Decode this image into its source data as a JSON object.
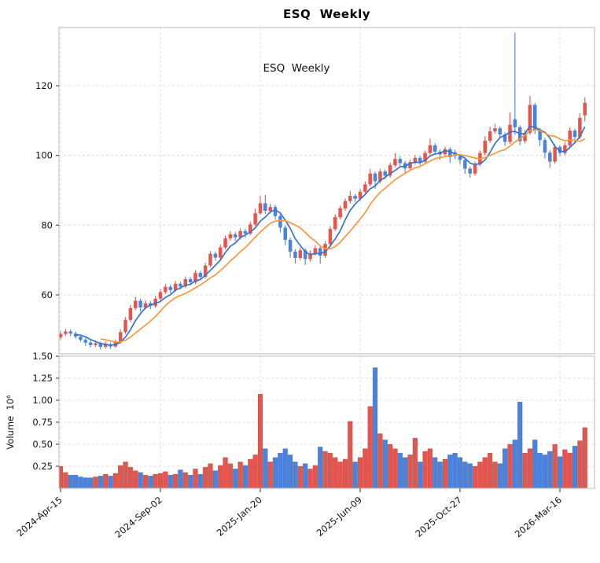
{
  "chart_data": {
    "type": "candlestick",
    "title": "ESQ  Weekly",
    "inner_label": "ESQ  Weekly",
    "grid": true,
    "legend_position": "none",
    "panels": [
      "price",
      "volume"
    ],
    "x_axis": {
      "tick_labels": [
        "2024-Apr-15",
        "2024-Sep-02",
        "2025-Jan-20",
        "2025-Jun-09",
        "2025-Oct-27",
        "2026-Mar-16"
      ],
      "tick_indices": [
        1,
        21,
        41,
        61,
        81,
        101
      ],
      "label_rotation_deg": -40
    },
    "price_axis": {
      "ticks": [
        60,
        80,
        100,
        120
      ],
      "range": [
        43,
        137
      ]
    },
    "volume_axis": {
      "label": "Volume  10⁶",
      "ticks": [
        0.25,
        0.5,
        0.75,
        1.0,
        1.25,
        1.5
      ],
      "range": [
        0,
        1.5
      ],
      "unit_multiplier": 1000000
    },
    "colors": {
      "up": "#e3554d",
      "down": "#4a82dd",
      "ma_short": "#3a72c6",
      "ma_long": "#f8973f",
      "grid": "#dcdcdc",
      "spine": "#c0c0c0"
    },
    "moving_averages": [
      {
        "window": 5,
        "color_key": "ma_short"
      },
      {
        "window": 10,
        "color_key": "ma_long"
      }
    ],
    "series_format": [
      "open",
      "high",
      "low",
      "close",
      "volume_millions"
    ],
    "candles": [
      [
        47.2,
        48.5,
        45.9,
        47.8,
        0.29
      ],
      [
        47.8,
        49.6,
        47.2,
        48.8,
        0.25
      ],
      [
        48.8,
        50.3,
        48.2,
        49.5,
        0.18
      ],
      [
        49.5,
        50.1,
        48.2,
        48.9,
        0.15
      ],
      [
        48.9,
        49.5,
        47.4,
        48.0,
        0.15
      ],
      [
        48.0,
        48.6,
        46.5,
        47.1,
        0.13
      ],
      [
        47.1,
        47.7,
        45.4,
        46.3,
        0.12
      ],
      [
        46.3,
        46.9,
        44.9,
        45.6,
        0.12
      ],
      [
        45.6,
        46.9,
        45.0,
        46.1,
        0.13
      ],
      [
        46.1,
        46.6,
        44.3,
        45.1,
        0.14
      ],
      [
        45.1,
        46.6,
        44.6,
        45.8,
        0.16
      ],
      [
        45.8,
        46.3,
        44.5,
        45.2,
        0.14
      ],
      [
        45.2,
        47.2,
        44.8,
        46.5,
        0.17
      ],
      [
        46.5,
        50.1,
        46.0,
        49.3,
        0.26
      ],
      [
        49.3,
        53.6,
        48.8,
        52.8,
        0.3
      ],
      [
        52.8,
        57.1,
        52.2,
        56.2,
        0.24
      ],
      [
        56.2,
        59.4,
        55.6,
        58.3,
        0.2
      ],
      [
        58.3,
        58.9,
        55.2,
        56.4,
        0.18
      ],
      [
        56.4,
        58.5,
        55.8,
        57.6,
        0.15
      ],
      [
        57.6,
        58.2,
        55.9,
        56.8,
        0.14
      ],
      [
        56.8,
        59.7,
        56.2,
        58.9,
        0.16
      ],
      [
        58.9,
        61.6,
        58.3,
        60.8,
        0.17
      ],
      [
        60.8,
        63.1,
        60.2,
        62.3,
        0.19
      ],
      [
        62.3,
        62.9,
        60.5,
        61.4,
        0.15
      ],
      [
        61.4,
        64.0,
        60.9,
        63.2,
        0.16
      ],
      [
        63.2,
        63.8,
        61.5,
        62.4,
        0.21
      ],
      [
        62.4,
        65.3,
        61.9,
        64.5,
        0.18
      ],
      [
        64.5,
        65.1,
        62.7,
        63.6,
        0.15
      ],
      [
        63.6,
        67.1,
        63.1,
        66.3,
        0.22
      ],
      [
        66.3,
        66.9,
        64.3,
        65.2,
        0.16
      ],
      [
        65.2,
        69.2,
        64.7,
        68.4,
        0.24
      ],
      [
        68.4,
        72.6,
        67.9,
        71.8,
        0.28
      ],
      [
        71.8,
        72.4,
        69.8,
        70.7,
        0.2
      ],
      [
        70.7,
        74.4,
        70.2,
        73.6,
        0.26
      ],
      [
        73.6,
        77.0,
        73.1,
        76.2,
        0.35
      ],
      [
        76.2,
        78.3,
        75.5,
        77.4,
        0.28
      ],
      [
        77.4,
        78.0,
        75.4,
        76.5,
        0.22
      ],
      [
        76.5,
        79.1,
        75.9,
        78.3,
        0.3
      ],
      [
        78.3,
        78.9,
        76.4,
        77.6,
        0.26
      ],
      [
        77.6,
        81.0,
        77.1,
        80.2,
        0.33
      ],
      [
        80.2,
        84.7,
        79.7,
        83.4,
        0.38
      ],
      [
        83.4,
        88.4,
        82.9,
        86.3,
        1.07
      ],
      [
        86.3,
        88.7,
        83.2,
        84.1,
        0.45
      ],
      [
        84.1,
        86.1,
        83.3,
        85.2,
        0.3
      ],
      [
        85.2,
        85.8,
        81.6,
        82.6,
        0.35
      ],
      [
        82.6,
        83.2,
        77.9,
        79.3,
        0.4
      ],
      [
        79.3,
        80.0,
        74.2,
        75.8,
        0.45
      ],
      [
        75.8,
        76.5,
        70.7,
        72.4,
        0.38
      ],
      [
        72.4,
        73.1,
        69.0,
        70.6,
        0.3
      ],
      [
        70.6,
        73.6,
        70.0,
        72.8,
        0.25
      ],
      [
        72.8,
        73.4,
        68.6,
        70.3,
        0.28
      ],
      [
        70.3,
        72.7,
        69.6,
        71.9,
        0.22
      ],
      [
        71.9,
        74.2,
        71.3,
        73.4,
        0.26
      ],
      [
        73.4,
        74.0,
        68.9,
        71.2,
        0.47
      ],
      [
        71.2,
        75.4,
        70.6,
        74.6,
        0.42
      ],
      [
        74.6,
        79.7,
        74.1,
        78.9,
        0.4
      ],
      [
        78.9,
        83.1,
        78.3,
        82.3,
        0.35
      ],
      [
        82.3,
        85.6,
        81.7,
        84.8,
        0.3
      ],
      [
        84.8,
        87.7,
        84.1,
        86.9,
        0.33
      ],
      [
        86.9,
        89.8,
        86.2,
        88.4,
        0.76
      ],
      [
        88.4,
        89.0,
        86.6,
        87.6,
        0.3
      ],
      [
        87.6,
        90.4,
        87.0,
        89.6,
        0.35
      ],
      [
        89.6,
        92.5,
        89.0,
        91.7,
        0.45
      ],
      [
        91.7,
        96.1,
        91.1,
        94.8,
        0.93
      ],
      [
        94.8,
        95.4,
        90.4,
        92.6,
        1.37
      ],
      [
        92.6,
        96.2,
        92.0,
        95.4,
        0.62
      ],
      [
        95.4,
        96.0,
        93.1,
        94.2,
        0.55
      ],
      [
        94.2,
        97.9,
        93.6,
        97.2,
        0.5
      ],
      [
        97.2,
        100.7,
        96.6,
        99.0,
        0.45
      ],
      [
        99.0,
        99.7,
        96.9,
        97.8,
        0.4
      ],
      [
        97.8,
        98.4,
        94.8,
        96.3,
        0.35
      ],
      [
        96.3,
        98.8,
        95.7,
        98.1,
        0.38
      ],
      [
        98.1,
        100.1,
        97.4,
        99.3,
        0.57
      ],
      [
        99.3,
        99.9,
        97.2,
        98.2,
        0.3
      ],
      [
        98.2,
        101.4,
        97.7,
        100.7,
        0.42
      ],
      [
        100.7,
        104.8,
        100.1,
        102.9,
        0.45
      ],
      [
        102.9,
        103.5,
        100.2,
        101.1,
        0.35
      ],
      [
        101.1,
        101.8,
        98.7,
        100.3,
        0.3
      ],
      [
        100.3,
        102.5,
        99.7,
        101.8,
        0.33
      ],
      [
        101.8,
        102.4,
        97.9,
        99.5,
        0.38
      ],
      [
        100.9,
        101.6,
        98.9,
        99.8,
        0.4
      ],
      [
        99.8,
        100.5,
        97.5,
        98.7,
        0.35
      ],
      [
        98.7,
        99.3,
        94.7,
        96.2,
        0.3
      ],
      [
        96.2,
        96.8,
        93.6,
        94.8,
        0.28
      ],
      [
        94.8,
        98.2,
        94.2,
        97.5,
        0.25
      ],
      [
        97.5,
        101.4,
        96.9,
        100.7,
        0.3
      ],
      [
        100.7,
        105.5,
        100.1,
        104.2,
        0.35
      ],
      [
        104.2,
        108.2,
        103.6,
        106.9,
        0.4
      ],
      [
        106.9,
        109.1,
        106.2,
        107.8,
        0.3
      ],
      [
        107.8,
        108.4,
        105.2,
        106.0,
        0.28
      ],
      [
        106.0,
        106.6,
        102.8,
        103.9,
        0.45
      ],
      [
        103.9,
        112.3,
        103.3,
        108.8,
        0.5
      ],
      [
        110.4,
        135.2,
        105.9,
        108.1,
        0.55
      ],
      [
        108.1,
        108.7,
        102.9,
        104.1,
        0.98
      ],
      [
        104.1,
        107.3,
        103.5,
        106.5,
        0.4
      ],
      [
        106.5,
        117.1,
        105.9,
        114.5,
        0.45
      ],
      [
        114.5,
        115.1,
        106.1,
        107.2,
        0.55
      ],
      [
        107.2,
        107.9,
        102.7,
        104.4,
        0.4
      ],
      [
        104.4,
        105.1,
        99.1,
        100.8,
        0.38
      ],
      [
        100.8,
        101.5,
        96.4,
        98.2,
        0.42
      ],
      [
        98.2,
        103.2,
        97.6,
        102.4,
        0.5
      ],
      [
        102.4,
        103.0,
        99.8,
        100.7,
        0.36
      ],
      [
        100.7,
        103.7,
        100.1,
        102.9,
        0.44
      ],
      [
        102.9,
        108.0,
        102.3,
        107.1,
        0.4
      ],
      [
        107.1,
        107.7,
        103.8,
        105.3,
        0.48
      ],
      [
        105.3,
        112.1,
        104.7,
        110.8,
        0.54
      ],
      [
        111.5,
        116.7,
        109.7,
        115.1,
        0.69
      ]
    ]
  }
}
